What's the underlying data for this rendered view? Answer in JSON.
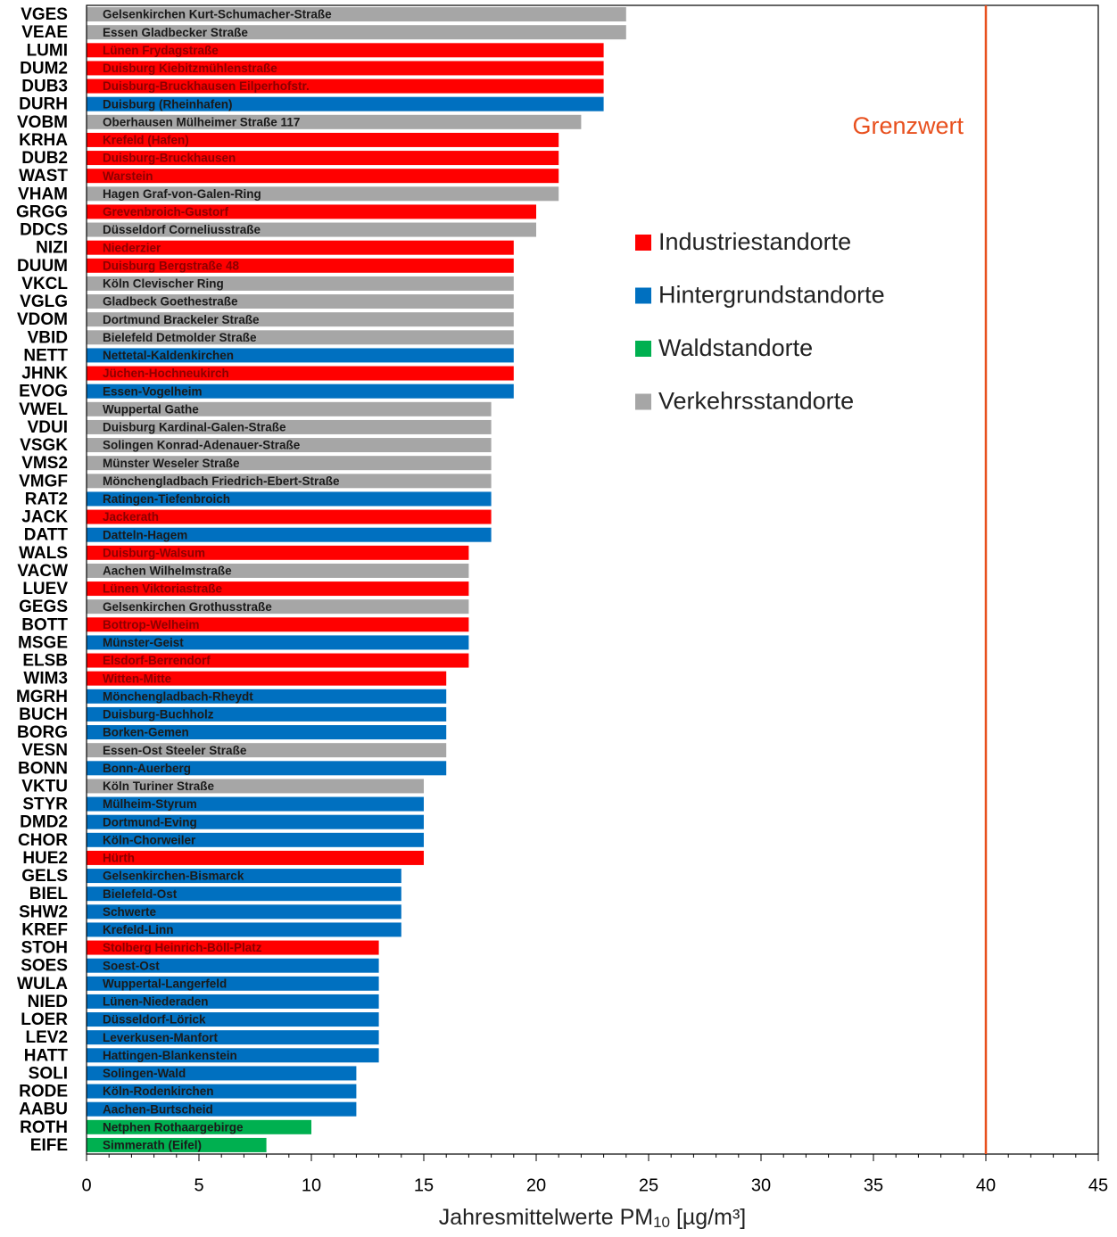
{
  "chart_data": {
    "type": "barh",
    "categories": [
      "VGES",
      "VEAE",
      "LUMI",
      "DUM2",
      "DUB3",
      "DURH",
      "VOBM",
      "KRHA",
      "DUB2",
      "WAST",
      "VHAM",
      "GRGG",
      "DDCS",
      "NIZI",
      "DUUM",
      "VKCL",
      "VGLG",
      "VDOM",
      "VBID",
      "NETT",
      "JHNK",
      "EVOG",
      "VWEL",
      "VDUI",
      "VSGK",
      "VMS2",
      "VMGF",
      "RAT2",
      "JACK",
      "DATT",
      "WALS",
      "VACW",
      "LUEV",
      "GEGS",
      "BOTT",
      "MSGE",
      "ELSB",
      "WIM3",
      "MGRH",
      "BUCH",
      "BORG",
      "VESN",
      "BONN",
      "VKTU",
      "STYR",
      "DMD2",
      "CHOR",
      "HUE2",
      "GELS",
      "BIEL",
      "SHW2",
      "KREF",
      "STOH",
      "SOES",
      "WULA",
      "NIED",
      "LOER",
      "LEV2",
      "HATT",
      "SOLI",
      "RODE",
      "AABU",
      "ROTH",
      "EIFE"
    ],
    "bar_labels": [
      "Gelsenkirchen Kurt-Schumacher-Straße",
      "Essen Gladbecker Straße",
      "Lünen Frydagstraße",
      "Duisburg Kiebitzmühlenstraße",
      "Duisburg-Bruckhausen Eilperhofstr.",
      "Duisburg (Rheinhafen)",
      "Oberhausen Mülheimer Straße 117",
      "Krefeld (Hafen)",
      "Duisburg-Bruckhausen",
      "Warstein",
      "Hagen Graf-von-Galen-Ring",
      "Grevenbroich-Gustorf",
      "Düsseldorf Corneliusstraße",
      "Niederzier",
      "Duisburg Bergstraße 48",
      "Köln Clevischer Ring",
      "Gladbeck Goethestraße",
      "Dortmund Brackeler Straße",
      "Bielefeld Detmolder Straße",
      "Nettetal-Kaldenkirchen",
      "Jüchen-Hochneukirch",
      "Essen-Vogelheim",
      "Wuppertal Gathe",
      "Duisburg Kardinal-Galen-Straße",
      "Solingen Konrad-Adenauer-Straße",
      "Münster Weseler Straße",
      "Mönchengladbach Friedrich-Ebert-Straße",
      "Ratingen-Tiefenbroich",
      "Jackerath",
      "Datteln-Hagem",
      "Duisburg-Walsum",
      "Aachen Wilhelmstraße",
      "Lünen Viktoriastraße",
      "Gelsenkirchen Grothusstraße",
      "Bottrop-Welheim",
      "Münster-Geist",
      "Elsdorf-Berrendorf",
      "Witten-Mitte",
      "Mönchengladbach-Rheydt",
      "Duisburg-Buchholz",
      "Borken-Gemen",
      "Essen-Ost Steeler Straße",
      "Bonn-Auerberg",
      "Köln Turiner Straße",
      "Mülheim-Styrum",
      "Dortmund-Eving",
      "Köln-Chorweiler",
      "Hürth",
      "Gelsenkirchen-Bismarck",
      "Bielefeld-Ost",
      "Schwerte",
      "Krefeld-Linn",
      "Stolberg Heinrich-Böll-Platz",
      "Soest-Ost",
      "Wuppertal-Langerfeld",
      "Lünen-Niederaden",
      "Düsseldorf-Lörick",
      "Leverkusen-Manfort",
      "Hattingen-Blankenstein",
      "Solingen-Wald",
      "Köln-Rodenkirchen",
      "Aachen-Burtscheid",
      "Netphen Rothaargebirge",
      "Simmerath (Eifel)"
    ],
    "series": [
      {
        "name": "Industriestandorte",
        "color": "#ff0000",
        "label_color": "#8b0000",
        "values": [
          null,
          null,
          23,
          23,
          23,
          null,
          null,
          21,
          21,
          21,
          null,
          20,
          null,
          19,
          19,
          null,
          null,
          null,
          null,
          null,
          19,
          null,
          null,
          null,
          null,
          null,
          null,
          null,
          18,
          null,
          17,
          null,
          17,
          null,
          17,
          null,
          17,
          16,
          null,
          null,
          null,
          null,
          null,
          null,
          null,
          null,
          null,
          15,
          null,
          null,
          null,
          null,
          13,
          null,
          null,
          null,
          null,
          null,
          null,
          null,
          null,
          null,
          null,
          null
        ]
      },
      {
        "name": "Hintergrundstandorte",
        "color": "#0070c0",
        "label_color": "#1a1a1a",
        "values": [
          null,
          null,
          null,
          null,
          null,
          23,
          null,
          null,
          null,
          null,
          null,
          null,
          null,
          null,
          null,
          null,
          null,
          null,
          null,
          19,
          null,
          19,
          null,
          null,
          null,
          null,
          null,
          18,
          null,
          18,
          null,
          null,
          null,
          null,
          null,
          17,
          null,
          null,
          16,
          16,
          16,
          null,
          16,
          null,
          15,
          15,
          15,
          null,
          14,
          14,
          14,
          14,
          null,
          13,
          13,
          13,
          13,
          13,
          13,
          12,
          12,
          12,
          null,
          null
        ]
      },
      {
        "name": "Waldstandorte",
        "color": "#00b050",
        "label_color": "#1a1a1a",
        "values": [
          null,
          null,
          null,
          null,
          null,
          null,
          null,
          null,
          null,
          null,
          null,
          null,
          null,
          null,
          null,
          null,
          null,
          null,
          null,
          null,
          null,
          null,
          null,
          null,
          null,
          null,
          null,
          null,
          null,
          null,
          null,
          null,
          null,
          null,
          null,
          null,
          null,
          null,
          null,
          null,
          null,
          null,
          null,
          null,
          null,
          null,
          null,
          null,
          null,
          null,
          null,
          null,
          null,
          null,
          null,
          null,
          null,
          null,
          null,
          null,
          null,
          null,
          10,
          8
        ]
      },
      {
        "name": "Verkehrsstandorte",
        "color": "#a6a6a6",
        "label_color": "#1a1a1a",
        "values": [
          24,
          24,
          null,
          null,
          null,
          null,
          22,
          null,
          null,
          null,
          21,
          null,
          20,
          null,
          null,
          19,
          19,
          19,
          19,
          null,
          null,
          null,
          18,
          18,
          18,
          18,
          18,
          null,
          null,
          null,
          null,
          17,
          null,
          17,
          null,
          null,
          null,
          null,
          null,
          null,
          null,
          16,
          null,
          15,
          null,
          null,
          null,
          null,
          null,
          null,
          null,
          null,
          null,
          null,
          null,
          null,
          null,
          null,
          null,
          null,
          null,
          null,
          null,
          null
        ]
      }
    ],
    "xlim": [
      0,
      45
    ],
    "xticks": [
      0,
      5,
      10,
      15,
      20,
      25,
      30,
      35,
      40,
      45
    ],
    "xlabel": [
      "Jahresmittelwerte PM",
      "10",
      " [µg/m³]"
    ],
    "limit": {
      "value": 40,
      "label": "Grenzwert",
      "color": "#e8501e"
    }
  }
}
